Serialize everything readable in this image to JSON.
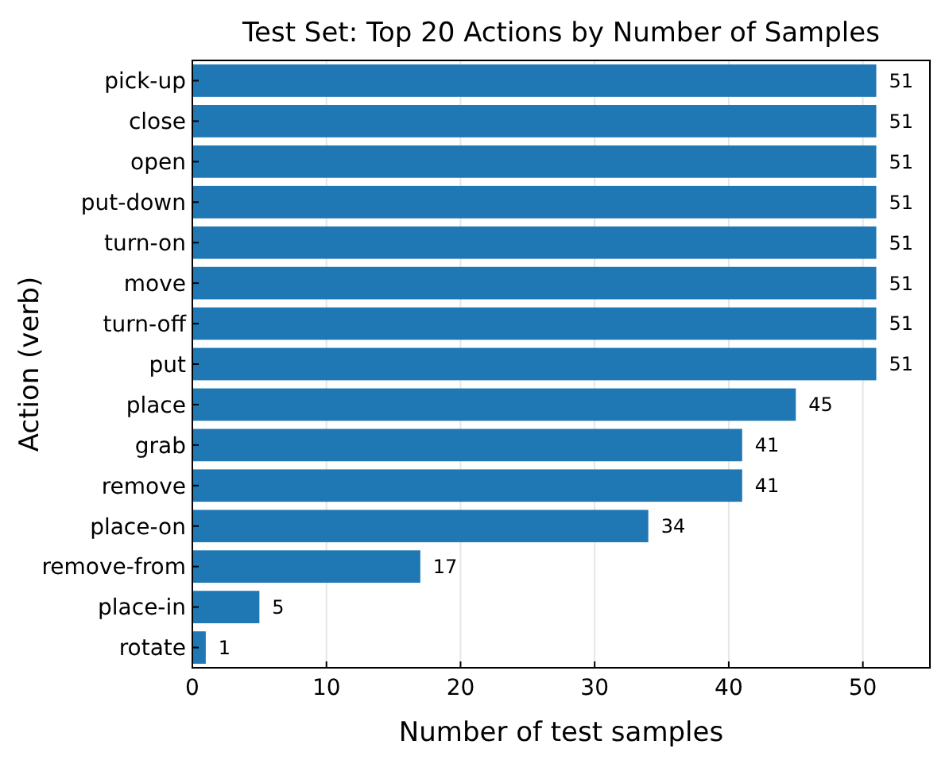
{
  "chart_data": {
    "type": "bar",
    "orientation": "horizontal",
    "title": "Test Set: Top 20 Actions by Number of Samples",
    "xlabel": "Number of test samples",
    "ylabel": "Action (verb)",
    "categories": [
      "pick-up",
      "close",
      "open",
      "put-down",
      "turn-on",
      "move",
      "turn-off",
      "put",
      "place",
      "grab",
      "remove",
      "place-on",
      "remove-from",
      "place-in",
      "rotate"
    ],
    "values": [
      51,
      51,
      51,
      51,
      51,
      51,
      51,
      51,
      45,
      41,
      41,
      34,
      17,
      5,
      1
    ],
    "color": "#1f77b4",
    "xlim": [
      0,
      55
    ],
    "xticks": [
      0,
      10,
      20,
      30,
      40,
      50
    ],
    "grid": "x",
    "data_labels": true
  }
}
